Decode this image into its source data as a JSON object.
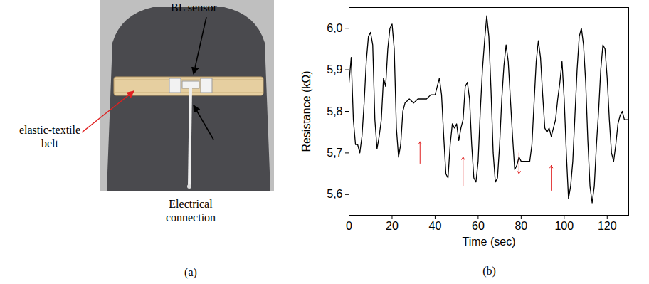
{
  "photo": {
    "panel_label": "(a)",
    "labels": [
      "BL sensor",
      "elastic-textile belt",
      "Electrical connection"
    ]
  },
  "chart_data": {
    "type": "line",
    "panel_label": "(b)",
    "x_label": "Time (sec)",
    "y_label": "Resistance (kΩ)",
    "xlim": [
      0,
      130
    ],
    "xticks": [
      0,
      20,
      40,
      60,
      80,
      100,
      120
    ],
    "ylim": [
      5.55,
      6.05
    ],
    "yticks": [
      {
        "value": 5.6,
        "label": "5,6"
      },
      {
        "value": 5.7,
        "label": "5,7"
      },
      {
        "value": 5.8,
        "label": "5,8"
      },
      {
        "value": 5.9,
        "label": "5,9"
      },
      {
        "value": 6.0,
        "label": "6,0"
      }
    ],
    "grid": false,
    "color": "#000000",
    "x": [
      0,
      1,
      2,
      3,
      4,
      5,
      6,
      7,
      8,
      9,
      10,
      11,
      12,
      13,
      14,
      15,
      16,
      17,
      18,
      19,
      20,
      21,
      22,
      23,
      24,
      25,
      26,
      28,
      30,
      32,
      34,
      36,
      38,
      40,
      41,
      42,
      43,
      44,
      45,
      46,
      47,
      48,
      49,
      50,
      51,
      52,
      53,
      54,
      55,
      56,
      57,
      58,
      59,
      60,
      61,
      62,
      63,
      64,
      65,
      66,
      67,
      68,
      69,
      70,
      71,
      72,
      73,
      74,
      75,
      76,
      77,
      78,
      79,
      80,
      82,
      84,
      85,
      86,
      87,
      88,
      89,
      90,
      91,
      92,
      93,
      94,
      95,
      96,
      97,
      98,
      99,
      100,
      101,
      102,
      103,
      104,
      105,
      106,
      107,
      108,
      109,
      110,
      111,
      112,
      113,
      114,
      115,
      116,
      117,
      118,
      119,
      120,
      121,
      122,
      123,
      124,
      125,
      126,
      127,
      128,
      130
    ],
    "values": [
      5.87,
      5.93,
      5.78,
      5.72,
      5.72,
      5.7,
      5.74,
      5.82,
      5.92,
      5.98,
      5.99,
      5.96,
      5.78,
      5.71,
      5.74,
      5.78,
      5.88,
      5.86,
      5.95,
      6.0,
      6.01,
      5.95,
      5.76,
      5.69,
      5.72,
      5.8,
      5.82,
      5.83,
      5.82,
      5.83,
      5.83,
      5.83,
      5.84,
      5.84,
      5.86,
      5.88,
      5.84,
      5.74,
      5.65,
      5.64,
      5.72,
      5.77,
      5.76,
      5.77,
      5.73,
      5.76,
      5.78,
      5.86,
      5.87,
      5.83,
      5.72,
      5.64,
      5.63,
      5.68,
      5.8,
      5.9,
      5.97,
      6.03,
      5.98,
      5.85,
      5.7,
      5.63,
      5.64,
      5.72,
      5.83,
      5.91,
      5.96,
      5.92,
      5.83,
      5.74,
      5.66,
      5.67,
      5.69,
      5.68,
      5.68,
      5.68,
      5.72,
      5.82,
      5.92,
      5.97,
      5.93,
      5.84,
      5.76,
      5.75,
      5.76,
      5.74,
      5.76,
      5.78,
      5.83,
      5.87,
      5.92,
      5.83,
      5.7,
      5.59,
      5.62,
      5.68,
      5.79,
      5.9,
      5.98,
      6.0,
      5.96,
      5.87,
      5.73,
      5.62,
      5.58,
      5.62,
      5.72,
      5.8,
      5.9,
      5.96,
      5.95,
      5.88,
      5.78,
      5.7,
      5.68,
      5.72,
      5.77,
      5.79,
      5.8,
      5.78,
      5.78
    ],
    "arrows": [
      {
        "x": 33,
        "from": 5.675,
        "to": 5.727,
        "color": "#e02020"
      },
      {
        "x": 53,
        "from": 5.62,
        "to": 5.69,
        "color": "#e02020"
      },
      {
        "x": 79,
        "from": 5.7,
        "to": 5.65,
        "color": "#e02020"
      },
      {
        "x": 94,
        "from": 5.61,
        "to": 5.67,
        "color": "#e02020"
      }
    ]
  }
}
